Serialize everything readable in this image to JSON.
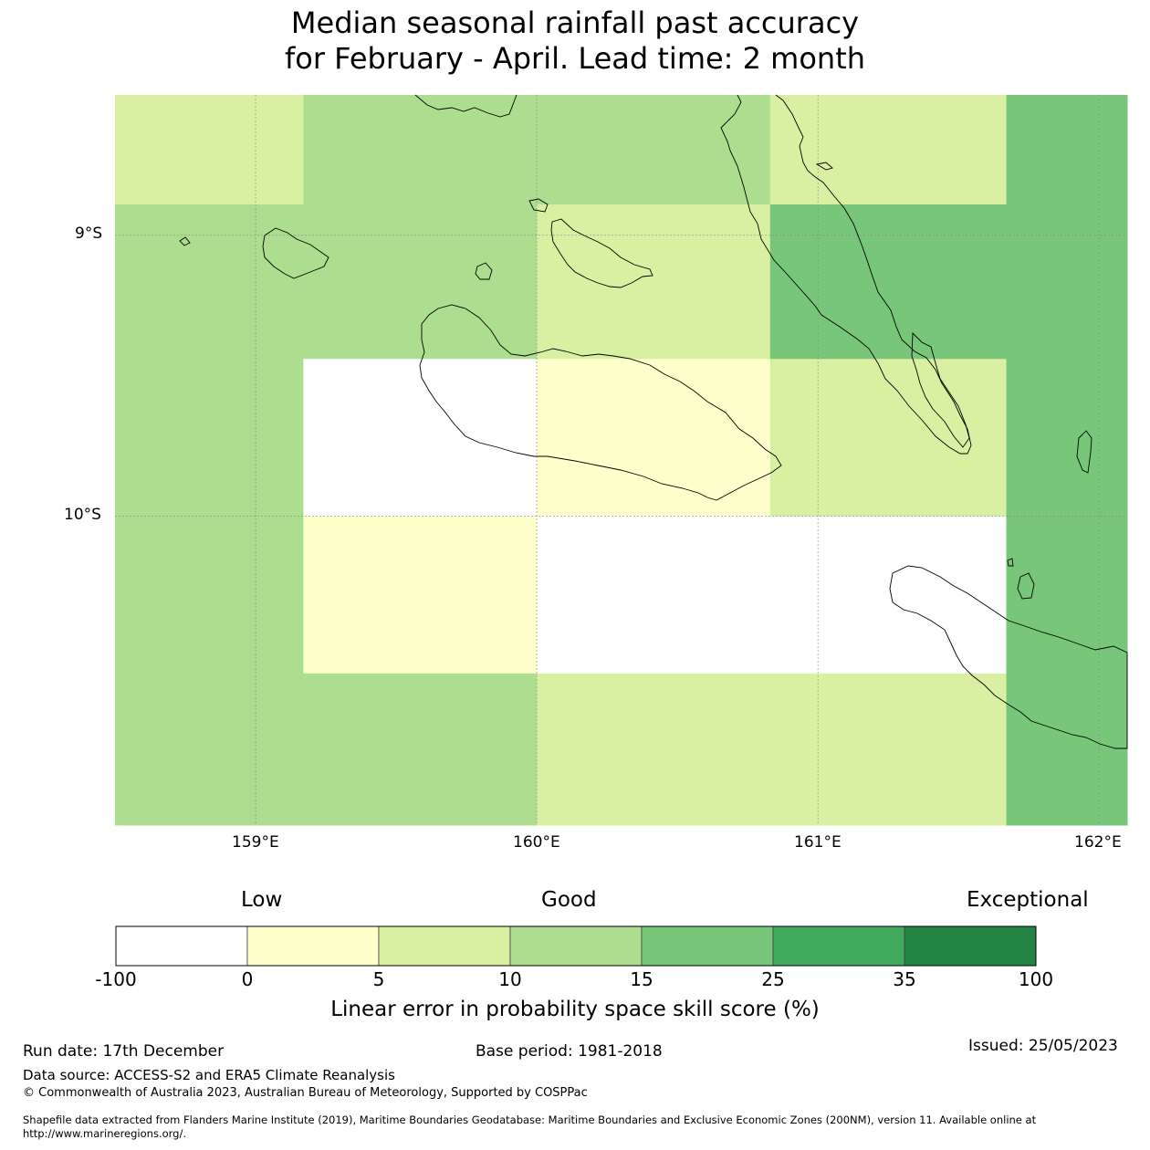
{
  "title": {
    "line1": "Median seasonal rainfall past accuracy",
    "line2": "for February - April. Lead time: 2 month"
  },
  "map": {
    "lon_range": [
      158.5,
      162.1
    ],
    "lat_range": [
      -11.1,
      -8.5
    ],
    "x_ticks": [
      {
        "value": 159,
        "label": "159°E"
      },
      {
        "value": 160,
        "label": "160°E"
      },
      {
        "value": 161,
        "label": "161°E"
      },
      {
        "value": 162,
        "label": "162°E"
      }
    ],
    "y_ticks": [
      {
        "value": -9,
        "label": "9°S"
      },
      {
        "value": -10,
        "label": "10°S"
      }
    ],
    "cells": [
      {
        "lon": [
          158.5,
          159.17
        ],
        "lat": [
          -8.89,
          -8.5
        ],
        "cat": 2
      },
      {
        "lon": [
          159.17,
          160.83
        ],
        "lat": [
          -8.89,
          -8.5
        ],
        "cat": 3
      },
      {
        "lon": [
          160.83,
          161.67
        ],
        "lat": [
          -8.89,
          -8.5
        ],
        "cat": 2
      },
      {
        "lon": [
          161.67,
          162.1
        ],
        "lat": [
          -8.89,
          -8.5
        ],
        "cat": 4
      },
      {
        "lon": [
          158.5,
          160.0
        ],
        "lat": [
          -9.44,
          -8.89
        ],
        "cat": 3
      },
      {
        "lon": [
          160.0,
          160.83
        ],
        "lat": [
          -9.44,
          -8.89
        ],
        "cat": 2
      },
      {
        "lon": [
          160.83,
          162.1
        ],
        "lat": [
          -9.44,
          -8.89
        ],
        "cat": 4
      },
      {
        "lon": [
          158.5,
          159.17
        ],
        "lat": [
          -10.0,
          -9.44
        ],
        "cat": 3
      },
      {
        "lon": [
          159.17,
          160.0
        ],
        "lat": [
          -10.0,
          -9.44
        ],
        "cat": 0
      },
      {
        "lon": [
          160.0,
          160.83
        ],
        "lat": [
          -10.0,
          -9.44
        ],
        "cat": 1
      },
      {
        "lon": [
          160.83,
          161.67
        ],
        "lat": [
          -10.0,
          -9.44
        ],
        "cat": 2
      },
      {
        "lon": [
          161.67,
          162.1
        ],
        "lat": [
          -10.0,
          -9.44
        ],
        "cat": 4
      },
      {
        "lon": [
          158.5,
          159.17
        ],
        "lat": [
          -10.56,
          -10.0
        ],
        "cat": 3
      },
      {
        "lon": [
          159.17,
          160.0
        ],
        "lat": [
          -10.56,
          -10.0
        ],
        "cat": 1
      },
      {
        "lon": [
          160.0,
          161.67
        ],
        "lat": [
          -10.56,
          -10.0
        ],
        "cat": 0
      },
      {
        "lon": [
          161.67,
          162.1
        ],
        "lat": [
          -10.56,
          -10.0
        ],
        "cat": 4
      },
      {
        "lon": [
          158.5,
          160.0
        ],
        "lat": [
          -11.1,
          -10.56
        ],
        "cat": 3
      },
      {
        "lon": [
          160.0,
          161.67
        ],
        "lat": [
          -11.1,
          -10.56
        ],
        "cat": 2
      },
      {
        "lon": [
          161.67,
          162.1
        ],
        "lat": [
          -11.1,
          -10.56
        ],
        "cat": 4
      }
    ]
  },
  "colorbar": {
    "word_low": "Low",
    "word_good": "Good",
    "word_exceptional": "Exceptional",
    "ticks": [
      "-100",
      "0",
      "5",
      "10",
      "15",
      "25",
      "35",
      "100"
    ],
    "colors": [
      "#ffffff",
      "#ffffcc",
      "#d9f0a3",
      "#addd8e",
      "#78c679",
      "#41ab5d",
      "#238443"
    ],
    "label": "Linear error in probability space skill score (%)"
  },
  "footer": {
    "run_date": "Run date: 17th December",
    "base_period": "Base period: 1981-2018",
    "issued": "Issued: 25/05/2023",
    "data_source": "Data source: ACCESS-S2 and ERA5 Climate Reanalysis",
    "copyright": "© Commonwealth of Australia 2023, Australian Bureau of Meteorology, Supported by COSPPac",
    "shapefile": "Shapefile data extracted from Flanders Marine Institute (2019), Maritime Boundaries Geodatabase: Maritime Boundaries and Exclusive Economic Zones (200NM), version 11. Available online at http://www.marineregions.org/."
  }
}
